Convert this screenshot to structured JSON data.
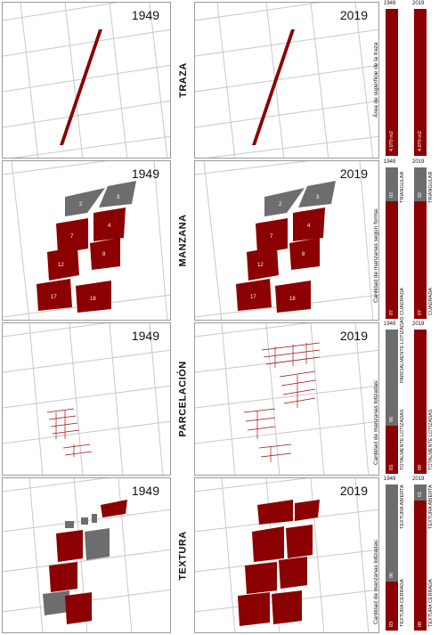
{
  "rows": [
    {
      "label": "TRAZA"
    },
    {
      "label": "MANZANA"
    },
    {
      "label": "PARCELACIÓN"
    },
    {
      "label": "TEXTURA"
    }
  ],
  "years": {
    "left": "1949",
    "right": "2019"
  },
  "block_numbers": [
    "2",
    "3",
    "4",
    "7",
    "8",
    "12",
    "17",
    "18"
  ],
  "traza": {
    "side_label": "Área de superficie de la traza",
    "bar_1949_value": "4.070 m2",
    "bar_2019_value": "4.070 m2",
    "col1": "1949",
    "col2": "2019"
  },
  "manzana": {
    "side_label": "Cantidad de manzanas según forma:",
    "col1": "1949",
    "col2": "2019",
    "b1949": {
      "gray_value": "02",
      "gray_text": "TRIANGULAR",
      "red_value": "07",
      "red_text": "CUADRADA"
    },
    "b2019": {
      "gray_value": "02",
      "gray_text": "TRIANGULAR",
      "red_value": "07",
      "red_text": "CUADRADA"
    }
  },
  "parcelacion": {
    "side_label": "Cantidad de manzanas lotizadas:",
    "col1": "1949",
    "col2": "2019",
    "b1949": {
      "gray_value": "06",
      "gray_text": "PARCIALMENTE LOTIZADAS",
      "red_value": "03",
      "red_text": "TOTALMENTE LOTIZADAS"
    },
    "b2019": {
      "red_value": "09",
      "red_text": "TOTALMENTE LOTIZADAS"
    }
  },
  "textura": {
    "side_label": "Cantidad de manzanas lotizadas:",
    "col1": "1949",
    "col2": "2019",
    "b1949": {
      "gray_value": "06",
      "gray_text": "TEXTURA ABIERTA",
      "red_value": "03",
      "red_text": "TEXTURA CERRADA"
    },
    "b2019": {
      "gray_value": "01",
      "gray_text": "TEXTURA ABIERTA",
      "red_value": "08",
      "red_text": "TEXTURA CERRADA"
    }
  },
  "colors": {
    "red": "#8b0000",
    "gray": "#6d6d6d"
  }
}
